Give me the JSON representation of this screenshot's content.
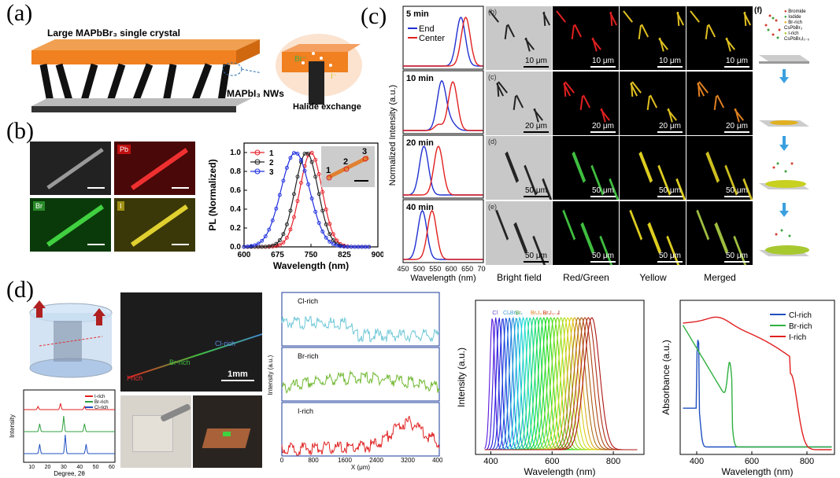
{
  "labels": {
    "a": "(a)",
    "b": "(b)",
    "c": "(c)",
    "d": "(d)"
  },
  "panel_a": {
    "crystal_label": "Large MAPbBr₃ single crystal",
    "nw_label": "MAPbI₃ NWs",
    "exchange_label": "Halide exchange",
    "br_ion": "Br⁻",
    "i_ion": "I⁻"
  },
  "panel_b": {
    "tiles": [
      "",
      "Pb",
      "Br",
      "I"
    ],
    "chart_data": {
      "type": "line",
      "xlabel": "Wavelength (nm)",
      "ylabel": "PL (Normalized)",
      "xlim": [
        600,
        900
      ],
      "ylim": [
        0,
        1.1
      ],
      "xticks": [
        "600",
        "675",
        "750",
        "825",
        "900"
      ],
      "yticks": [
        "0.0",
        "0.2",
        "0.4",
        "0.6",
        "0.8",
        "1.0"
      ],
      "legend": "top-right",
      "series": [
        {
          "name": "1",
          "color": "#e8202a",
          "peak": 750,
          "width": 25
        },
        {
          "name": "2",
          "color": "#222222",
          "peak": 740,
          "width": 26
        },
        {
          "name": "3",
          "color": "#2030e0",
          "peak": 715,
          "width": 32
        }
      ],
      "inset_points": [
        "1",
        "2",
        "3"
      ]
    }
  },
  "panel_c": {
    "ylabel": "Normalized Intensity (a.u.)",
    "xlabel": "Wavelength (nm)",
    "xticks": [
      "450",
      "500",
      "550",
      "600",
      "650",
      "700"
    ],
    "legend": [
      "End",
      "Center"
    ],
    "times": [
      "5 min",
      "10 min",
      "20 min",
      "40 min"
    ],
    "chart_data": {
      "type": "line",
      "series_colors": {
        "End": "#2030d0",
        "Center": "#e02020"
      },
      "subplots": [
        {
          "time": "5 min",
          "end_peak": 630,
          "center_peak": 645
        },
        {
          "time": "10 min",
          "end_peak": 570,
          "center_peak": 605
        },
        {
          "time": "20 min",
          "end_peak": 515,
          "center_peak": 560
        },
        {
          "time": "40 min",
          "end_peak": 510,
          "center_peak": 540
        }
      ]
    },
    "row_labels": [
      "(b)",
      "(c)",
      "(d)",
      "(e)"
    ],
    "scales": [
      "10 μm",
      "20 μm",
      "50 μm",
      "50 μm"
    ],
    "col_heads": [
      "Bright field",
      "Red/Green",
      "Yellow",
      "Merged"
    ],
    "f_label": "(f)",
    "f_legend": [
      "Bromide",
      "Iodide",
      "Br-rich CsPbBr₃",
      "I-rich CsPbBrₓI₃₋ₓ"
    ]
  },
  "panel_d": {
    "photo_labels": {
      "cl": "Cl-rich",
      "br": "Br-rich",
      "i": "I-rich",
      "scale": "1mm"
    },
    "xrd": {
      "legend": [
        "I-rich",
        "Br-rich",
        "Cl-rich"
      ],
      "ylabel": "Intensity",
      "xticks": [
        "10",
        "20",
        "30",
        "40",
        "50",
        "60"
      ],
      "xlabel": "Degree, 2θ"
    },
    "line_profile": {
      "rows": [
        "Cl-rich",
        "Br-rich",
        "I-rich"
      ],
      "ylabel": "Intensity (a.u.)",
      "xlabel": "X (μm)",
      "xticks": [
        "0",
        "800",
        "1600",
        "2400",
        "3200",
        "4000"
      ]
    },
    "pl_spectra": {
      "ylabel": "Intensity (a.u.)",
      "xlabel": "Wavelength (nm)",
      "xticks": [
        "400",
        "600",
        "800"
      ],
      "top_labels": [
        "Cl",
        "ClₓBr₃₋ₓ",
        "Br",
        "BrₓI₃₋ₓ",
        "BrₓI₃₋ₓ",
        "I"
      ]
    },
    "absorbance": {
      "ylabel": "Absorbance (a.u.)",
      "xlabel": "Wavelength (nm)",
      "xticks": [
        "400",
        "600",
        "800"
      ],
      "legend": [
        "Cl-rich",
        "Br-rich",
        "I-rich"
      ],
      "colors": [
        "#2050c0",
        "#30b040",
        "#e02020"
      ]
    }
  }
}
